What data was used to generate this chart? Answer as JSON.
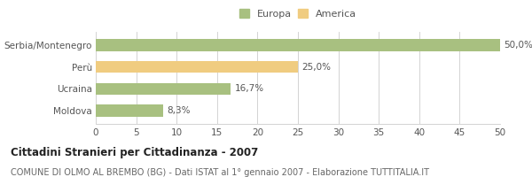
{
  "categories": [
    "Serbia/Montenegro",
    "Perù",
    "Ucraina",
    "Moldova"
  ],
  "values": [
    50.0,
    25.0,
    16.7,
    8.3
  ],
  "labels": [
    "50,0%",
    "25,0%",
    "16,7%",
    "8,3%"
  ],
  "colors": [
    "#a8c080",
    "#f0cc80",
    "#a8c080",
    "#a8c080"
  ],
  "europa_color": "#a8c080",
  "america_color": "#f0cc80",
  "xlim": [
    0,
    50
  ],
  "xticks": [
    0,
    5,
    10,
    15,
    20,
    25,
    30,
    35,
    40,
    45,
    50
  ],
  "title": "Cittadini Stranieri per Cittadinanza - 2007",
  "subtitle": "COMUNE DI OLMO AL BREMBO (BG) - Dati ISTAT al 1° gennaio 2007 - Elaborazione TUTTITALIA.IT",
  "legend_europa": "Europa",
  "legend_america": "America",
  "bar_height": 0.55,
  "background_color": "#ffffff",
  "grid_color": "#cccccc",
  "title_fontsize": 8.5,
  "subtitle_fontsize": 7,
  "label_fontsize": 7.5,
  "tick_fontsize": 7.5,
  "legend_fontsize": 8
}
